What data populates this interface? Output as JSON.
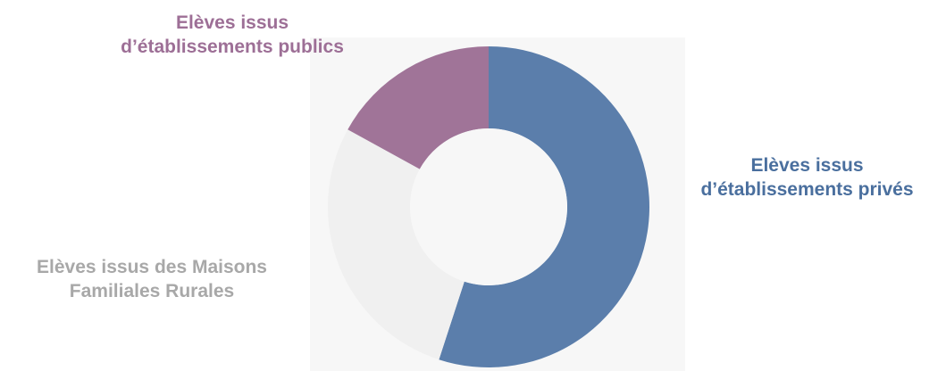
{
  "chart_data": {
    "type": "pie",
    "donut": true,
    "title": "",
    "start_angle_deg": 0,
    "slices": [
      {
        "label_lines": [
          "Elèves issus",
          "d’établissements privés"
        ],
        "value": 55,
        "color": "#5b7eab",
        "label_color": "#4a6f9e"
      },
      {
        "label_lines": [
          "Elèves issus  des Maisons",
          "Familiales Rurales"
        ],
        "value": 28,
        "color": "#f0f0f0",
        "label_color": "#a8a8a8"
      },
      {
        "label_lines": [
          "Elèves issus",
          "d’établissements publics"
        ],
        "value": 17,
        "color": "#a07498",
        "label_color": "#9d6f96"
      }
    ]
  }
}
